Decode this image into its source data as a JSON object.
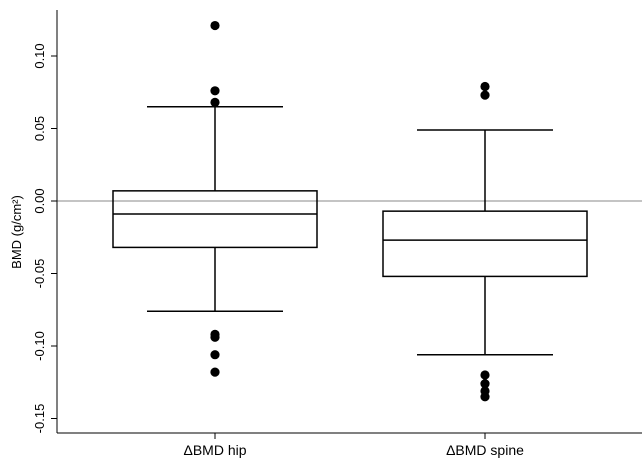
{
  "chart_data": {
    "type": "box",
    "title": "",
    "xlabel": "",
    "ylabel": "BMD (g/cm²)",
    "ylim": [
      -0.16,
      0.13
    ],
    "yticks": [
      0.1,
      0.05,
      0.0,
      -0.05,
      -0.1,
      -0.15
    ],
    "ytick_labels": [
      "0.10",
      "0.05",
      "0.00",
      "-0.05",
      "-0.10",
      "-0.15"
    ],
    "reference_line": 0.0,
    "grid": false,
    "categories": [
      "ΔBMD hip",
      "ΔBMD spine"
    ],
    "boxes": [
      {
        "label": "ΔBMD hip",
        "whisker_low": -0.076,
        "q1": -0.032,
        "median": -0.009,
        "q3": 0.007,
        "whisker_high": 0.065,
        "outliers": [
          0.121,
          0.076,
          0.068,
          -0.092,
          -0.094,
          -0.106,
          -0.118
        ]
      },
      {
        "label": "ΔBMD spine",
        "whisker_low": -0.106,
        "q1": -0.052,
        "median": -0.027,
        "q3": -0.007,
        "whisker_high": 0.049,
        "outliers": [
          0.079,
          0.073,
          -0.12,
          -0.126,
          -0.131,
          -0.135
        ]
      }
    ],
    "colors": {
      "axis": "#000000",
      "reference": "#a0a0a0",
      "box": "#000000"
    }
  }
}
